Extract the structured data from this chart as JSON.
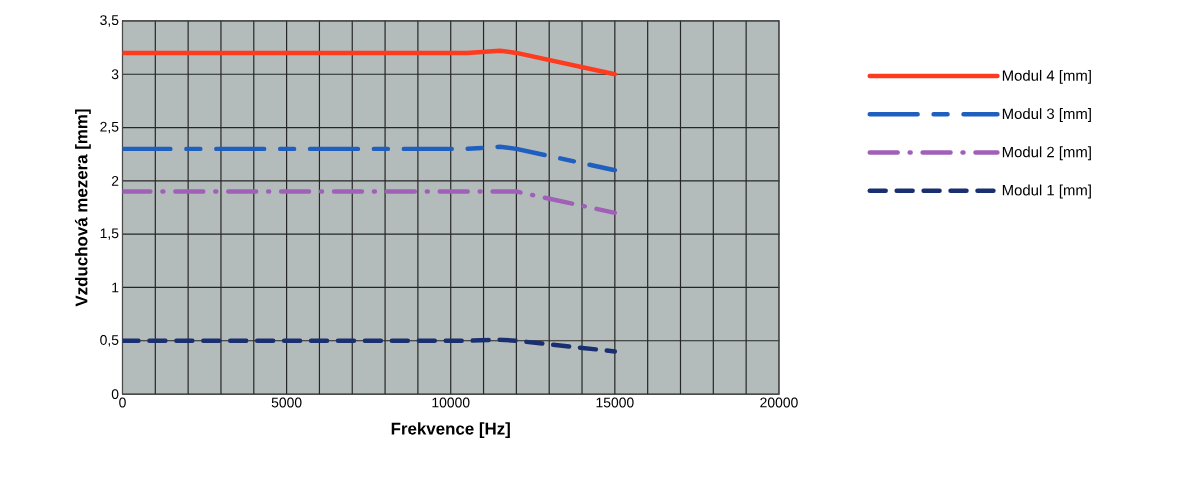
{
  "chart_data": {
    "type": "line",
    "xlabel": "Frekvence [Hz]",
    "ylabel": "Vzduchová mezera [mm]",
    "xlim": [
      0,
      20000
    ],
    "ylim": [
      0,
      3.5
    ],
    "xticks": [
      0,
      {
        "value": 1000,
        "label": null
      },
      {
        "value": 2000,
        "label": null
      },
      {
        "value": 3000,
        "label": null
      },
      {
        "value": 4000,
        "label": null
      },
      5000,
      {
        "value": 6000,
        "label": null
      },
      {
        "value": 7000,
        "label": null
      },
      {
        "value": 8000,
        "label": null
      },
      {
        "value": 9000,
        "label": null
      },
      10000,
      {
        "value": 11000,
        "label": null
      },
      {
        "value": 12000,
        "label": null
      },
      {
        "value": 13000,
        "label": null
      },
      {
        "value": 14000,
        "label": null
      },
      15000,
      {
        "value": 16000,
        "label": null
      },
      {
        "value": 17000,
        "label": null
      },
      {
        "value": 18000,
        "label": null
      },
      {
        "value": 19000,
        "label": null
      },
      20000
    ],
    "yticks": [
      0,
      {
        "value": 0.5,
        "label": "0,5"
      },
      1,
      {
        "value": 1.5,
        "label": "1,5"
      },
      2,
      {
        "value": 2.5,
        "label": "2,5"
      },
      3,
      {
        "value": 3.5,
        "label": "3,5"
      }
    ],
    "grid": true,
    "legend": "right",
    "marker": "none",
    "x": [
      0,
      10500,
      11500,
      12000,
      15000
    ],
    "series": [
      {
        "name": "Modul 4 [mm]",
        "color": "#ff3b1f",
        "line_style": "solid",
        "values": [
          3.2,
          3.2,
          3.22,
          3.2,
          3.0
        ]
      },
      {
        "name": "Modul 3 [mm]",
        "color": "#1f5fbf",
        "line_style": "longdashdot",
        "values": [
          2.3,
          2.3,
          2.32,
          2.3,
          2.1
        ]
      },
      {
        "name": "Modul 2 [mm]",
        "color": "#a060b8",
        "line_style": "dashdot",
        "values": [
          1.9,
          1.9,
          1.9,
          1.9,
          1.7
        ]
      },
      {
        "name": "Modul 1 [mm]",
        "color": "#1a2f70",
        "line_style": "dashed",
        "values": [
          0.5,
          0.5,
          0.51,
          0.5,
          0.4
        ]
      }
    ]
  }
}
